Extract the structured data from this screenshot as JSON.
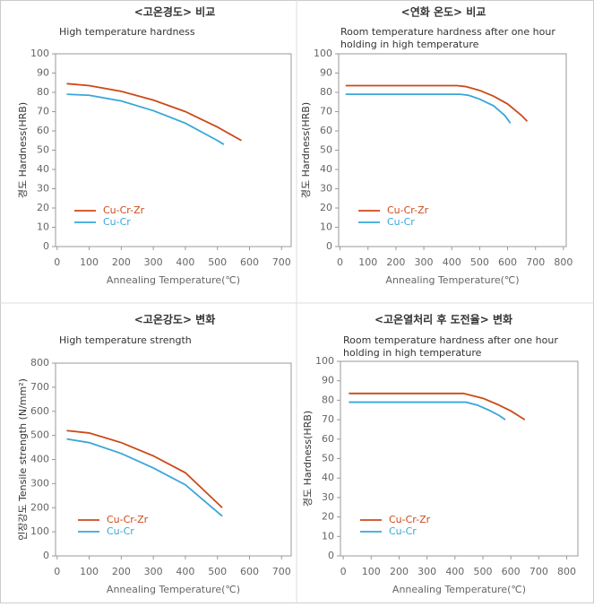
{
  "chart_data": [
    {
      "type": "line",
      "title": "<고온경도> 비교",
      "subtitle": "High temperature hardness",
      "xlabel": "Annealing Temperature(℃)",
      "ylabel": "경도 Hardness(HRB)",
      "xlim": [
        -5,
        730
      ],
      "xticks": [
        0,
        100,
        200,
        300,
        400,
        500,
        600,
        700
      ],
      "ylim": [
        0,
        100
      ],
      "yticks": [
        0,
        10,
        20,
        30,
        40,
        50,
        60,
        70,
        80,
        90,
        100
      ],
      "legend": "lower left",
      "grid": false,
      "series": [
        {
          "name": "Cu-Cr-Zr",
          "color": "#cc4a1a",
          "x": [
            30,
            100,
            200,
            300,
            400,
            500,
            575
          ],
          "values": [
            84.5,
            83.5,
            80.5,
            76,
            70,
            62,
            55
          ]
        },
        {
          "name": "Cu-Cr",
          "color": "#3aa6d8",
          "x": [
            30,
            100,
            200,
            300,
            400,
            500,
            520
          ],
          "values": [
            79,
            78.5,
            75.5,
            70.5,
            64,
            55,
            53
          ]
        }
      ]
    },
    {
      "type": "line",
      "title": "<연화 온도> 비교",
      "subtitle": "Room temperature hardness after one hour holding in high temperature",
      "xlabel": "Annealing Temperature(℃)",
      "ylabel": "경도 Hardness(HRB)",
      "xlim": [
        -5,
        810
      ],
      "xticks": [
        0,
        100,
        200,
        300,
        400,
        500,
        600,
        700,
        800
      ],
      "ylim": [
        0,
        100
      ],
      "yticks": [
        0,
        10,
        20,
        30,
        40,
        50,
        60,
        70,
        80,
        90,
        100
      ],
      "legend": "lower left",
      "grid": false,
      "series": [
        {
          "name": "Cu-Cr-Zr",
          "color": "#cc4a1a",
          "x": [
            20,
            420,
            450,
            500,
            550,
            600,
            650,
            670
          ],
          "values": [
            83.5,
            83.5,
            83,
            81,
            78,
            74,
            68,
            65
          ]
        },
        {
          "name": "Cu-Cr",
          "color": "#3aa6d8",
          "x": [
            20,
            430,
            460,
            500,
            550,
            590,
            610
          ],
          "values": [
            79,
            79,
            78.5,
            76.5,
            73,
            68,
            64
          ]
        }
      ]
    },
    {
      "type": "line",
      "title": "<고온강도> 변화",
      "subtitle": "High temperature strength",
      "xlabel": "Annealing Temperature(℃)",
      "ylabel": "인장강도 Tensile strength (N/mm²)",
      "xlim": [
        -5,
        730
      ],
      "xticks": [
        0,
        100,
        200,
        300,
        400,
        500,
        600,
        700
      ],
      "ylim": [
        0,
        800
      ],
      "yticks": [
        0,
        100,
        200,
        300,
        400,
        500,
        600,
        700,
        800
      ],
      "legend": "lower left",
      "grid": false,
      "series": [
        {
          "name": "Cu-Cr-Zr",
          "color": "#cc4a1a",
          "x": [
            30,
            100,
            200,
            300,
            400,
            515
          ],
          "values": [
            520,
            510,
            470,
            415,
            345,
            200
          ]
        },
        {
          "name": "Cu-Cr",
          "color": "#3aa6d8",
          "x": [
            30,
            100,
            200,
            300,
            400,
            515
          ],
          "values": [
            485,
            470,
            425,
            365,
            295,
            165
          ]
        }
      ]
    },
    {
      "type": "line",
      "title": "<고온열처리 후 도전율> 변화",
      "subtitle": "Room temperature hardness after one hour holding in high temperature",
      "xlabel": "Annealing Temperature(℃)",
      "ylabel": "경도 Hardness(HRB)",
      "xlim": [
        -10,
        840
      ],
      "xticks": [
        0,
        100,
        200,
        300,
        400,
        500,
        600,
        700,
        800
      ],
      "ylim": [
        0,
        100
      ],
      "yticks": [
        0,
        10,
        20,
        30,
        40,
        50,
        60,
        70,
        80,
        90,
        100
      ],
      "legend": "lower left",
      "grid": false,
      "series": [
        {
          "name": "Cu-Cr-Zr",
          "color": "#cc4a1a",
          "x": [
            20,
            430,
            500,
            550,
            600,
            650
          ],
          "values": [
            83.5,
            83.5,
            81,
            78,
            74.5,
            70
          ]
        },
        {
          "name": "Cu-Cr",
          "color": "#3aa6d8",
          "x": [
            20,
            440,
            480,
            520,
            560,
            580
          ],
          "values": [
            79,
            79,
            77.5,
            75,
            72,
            70
          ]
        }
      ]
    }
  ]
}
